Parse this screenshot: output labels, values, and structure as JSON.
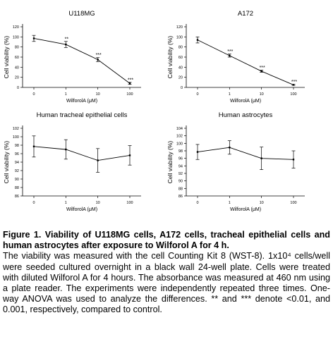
{
  "chart_data": [
    {
      "type": "line",
      "title": "U118MG",
      "x_label": "WilforolA (μM)",
      "y_label": "Cell viability (%)",
      "categories": [
        "0",
        "1",
        "10",
        "100"
      ],
      "values": [
        97,
        85,
        55,
        8
      ],
      "errors": [
        6,
        6,
        4,
        2
      ],
      "significance": [
        null,
        "**",
        "***",
        "***"
      ],
      "color": "#000000",
      "ylim": [
        0,
        120
      ],
      "yticks": [
        0,
        20,
        40,
        60,
        80,
        100,
        120
      ]
    },
    {
      "type": "line",
      "title": "A172",
      "x_label": "WilforolA (μM)",
      "y_label": "Cell viability (%)",
      "categories": [
        "0",
        "1",
        "10",
        "100"
      ],
      "values": [
        94,
        63,
        32,
        5
      ],
      "errors": [
        6,
        3,
        2,
        1
      ],
      "significance": [
        null,
        "***",
        "***",
        "***"
      ],
      "color": "#000000",
      "ylim": [
        0,
        120
      ],
      "yticks": [
        0,
        20,
        40,
        60,
        80,
        100,
        120
      ]
    },
    {
      "type": "line",
      "title": "Human tracheal epithelial cells",
      "x_label": "WilforolA (μM)",
      "y_label": "Cell viability (%)",
      "categories": [
        "0",
        "1",
        "10",
        "100"
      ],
      "values": [
        97.7,
        97.0,
        94.4,
        95.6
      ],
      "errors": [
        2.5,
        2.3,
        2.8,
        2.3
      ],
      "color": "#000000",
      "ylim": [
        86,
        102
      ],
      "yticks": [
        86,
        88,
        90,
        92,
        94,
        96,
        98,
        100,
        102
      ]
    },
    {
      "type": "line",
      "title": "Human astrocytes",
      "x_label": "WilforolA (μM)",
      "y_label": "Cell viability (%)",
      "categories": [
        "0",
        "1",
        "10",
        "100"
      ],
      "values": [
        97.7,
        98.9,
        96.0,
        95.7
      ],
      "errors": [
        2.0,
        1.8,
        3.0,
        2.3
      ],
      "color": "#000000",
      "ylim": [
        86,
        104
      ],
      "yticks": [
        86,
        88,
        90,
        92,
        94,
        96,
        98,
        100,
        102,
        104
      ]
    }
  ],
  "caption": {
    "title": "Figure 1. Viability of U118MG cells, A172 cells, tracheal epithelial cells and human astrocytes after exposure to Wilforol A for 4 h.",
    "body": "The viability was measured with the cell Counting Kit 8 (WST-8). 1x10⁴ cells/well were seeded cultured overnight in a black wall 24-well plate. Cells were treated with diluted Wilforol A for 4 hours. The absorbance was measured at 460 nm using a plate reader. The experiments were independently repeated three times. One-way ANOVA was used to analyze the differences. ** and *** denote <0.01, and 0.001, respectively, compared to control."
  }
}
